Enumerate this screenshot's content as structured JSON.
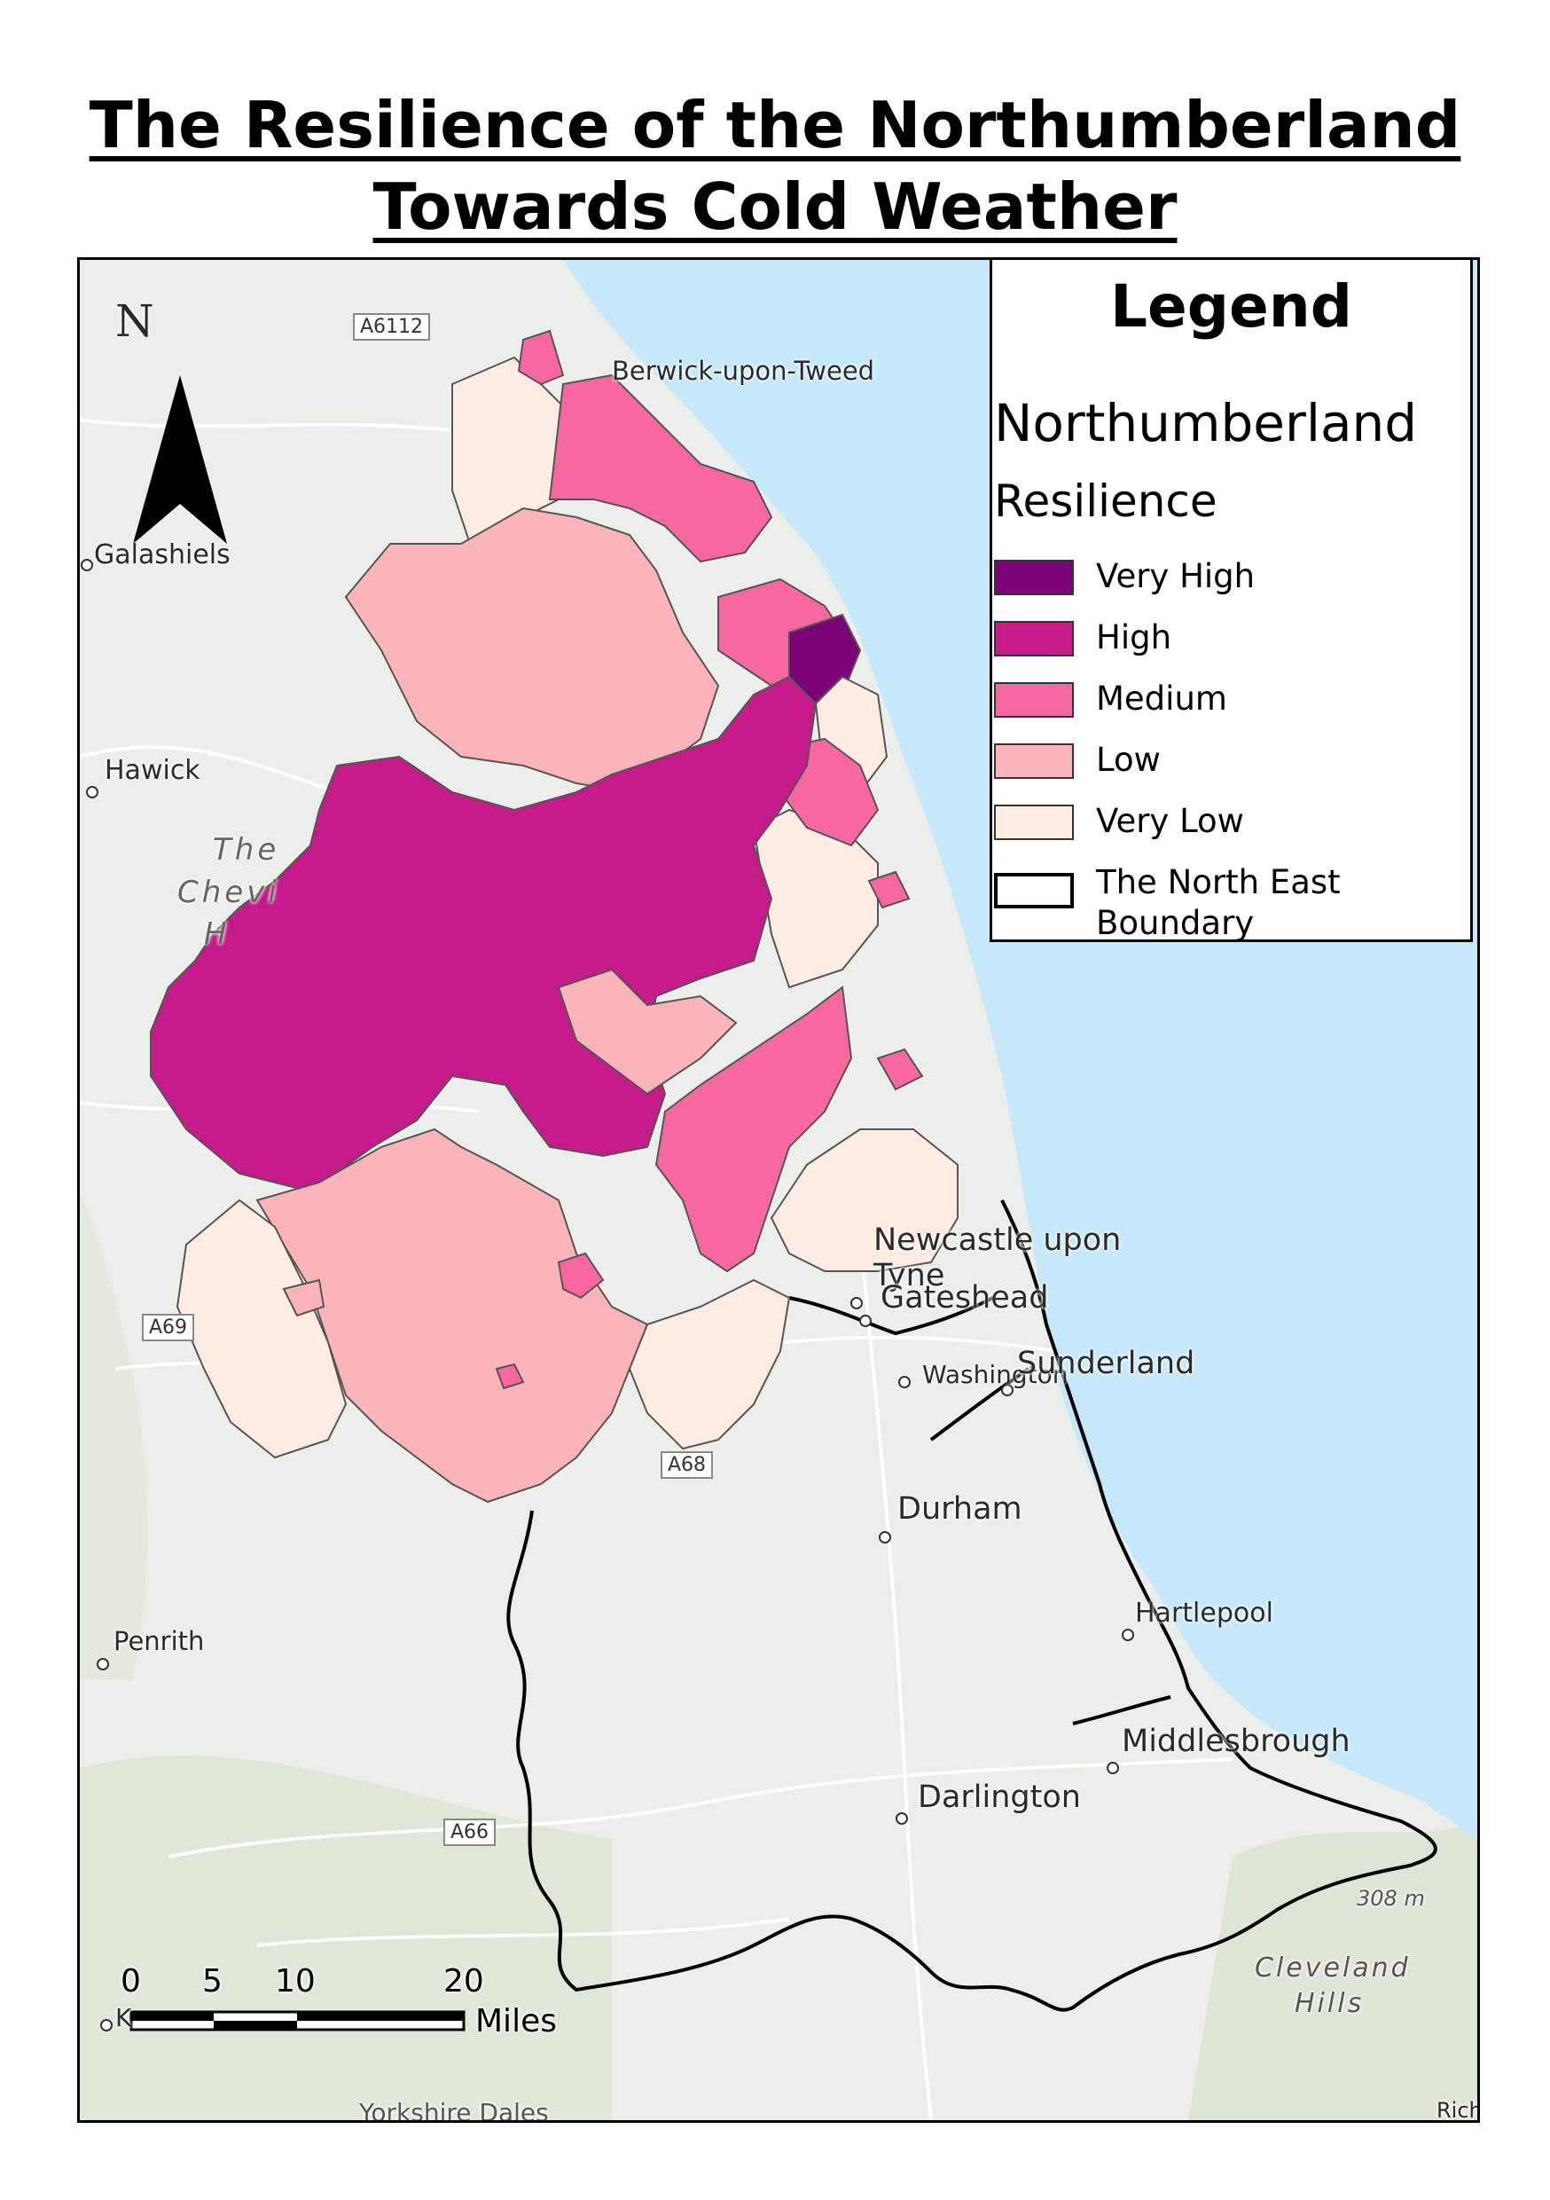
{
  "title": {
    "line1": "The Resilience of the Northumberland",
    "line2": "Towards Cold Weather"
  },
  "legend": {
    "heading": "Legend",
    "layer_name": "Northumberland",
    "field_name": "Resilience",
    "classes": [
      {
        "label": "Very High",
        "color": "#7a0177"
      },
      {
        "label": "High",
        "color": "#c51b8a"
      },
      {
        "label": "Medium",
        "color": "#f768a1"
      },
      {
        "label": "Low",
        "color": "#fbb4b9"
      },
      {
        "label": "Very Low",
        "color": "#feebe2"
      }
    ],
    "boundary_label_1": "The North East",
    "boundary_label_2": "Boundary"
  },
  "north_arrow": {
    "label": "N"
  },
  "places": {
    "berwick": "Berwick-upon-Tweed",
    "galashiels": "Galashiels",
    "hawick": "Hawick",
    "cheviot_1": "The",
    "cheviot_2": "Chevi",
    "cheviot_3": "H",
    "newcastle_1": "Newcastle upon",
    "newcastle_2": "Tyne",
    "gateshead": "Gateshead",
    "washington": "Washington",
    "sunderland": "Sunderland",
    "durham": "Durham",
    "hartlepool": "Hartlepool",
    "middlesbrough": "Middlesbrough",
    "darlington": "Darlington",
    "penrith": "Penrith",
    "elevation": "308 m",
    "cleveland_1": "Cleveland",
    "cleveland_2": "Hills",
    "yorkshire": "Yorkshire Dales",
    "k": "K",
    "rich": "Rich"
  },
  "roads": {
    "a6112": "A6112",
    "a69": "A69",
    "a68": "A68",
    "a66": "A66"
  },
  "scale_bar": {
    "ticks": [
      "0",
      "5",
      "10",
      "20"
    ],
    "unit": "Miles"
  },
  "colors": {
    "sea": "#c5e8fa",
    "land": "#eceeea",
    "boundary": "#000000"
  }
}
